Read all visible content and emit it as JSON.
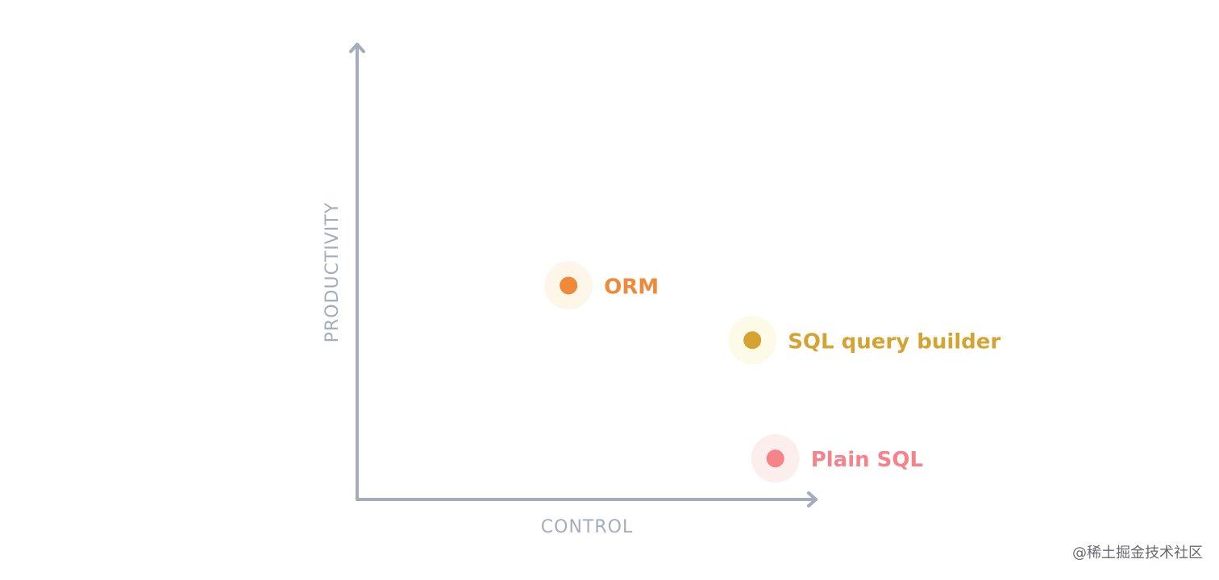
{
  "chart_data": {
    "type": "scatter",
    "title": "",
    "xlabel": "CONTROL",
    "ylabel": "PRODUCTIVITY",
    "xlim": [
      0,
      100
    ],
    "ylim": [
      0,
      100
    ],
    "grid": false,
    "points": [
      {
        "label": "ORM",
        "x": 46,
        "y": 47,
        "color": "#ef8a3a",
        "halo": "#fdf6e9"
      },
      {
        "label": "SQL query builder",
        "x": 86,
        "y": 35,
        "color": "#d5a332",
        "halo": "#fdfbe8"
      },
      {
        "label": "Plain SQL",
        "x": 91,
        "y": 9,
        "color": "#f6828a",
        "halo": "#fdeeee"
      }
    ],
    "axis_color": "#a3adbd"
  },
  "watermark": "@稀土掘金技术社区"
}
